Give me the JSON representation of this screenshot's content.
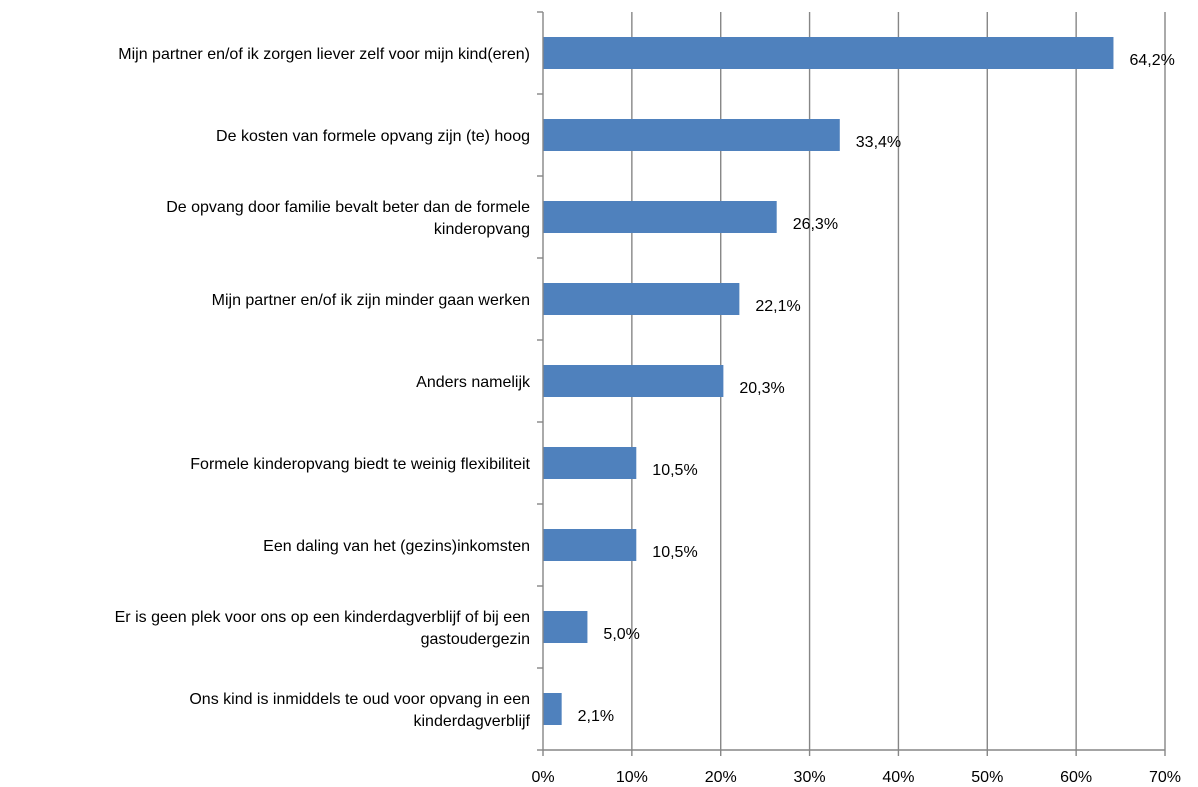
{
  "chart_data": {
    "type": "bar",
    "orientation": "horizontal",
    "categories": [
      "Mijn partner en/of ik zorgen liever zelf voor mijn kind(eren)",
      "De kosten van formele opvang zijn (te) hoog",
      "De opvang door familie bevalt beter dan de formele kinderopvang",
      "Mijn partner en/of ik zijn minder gaan werken",
      "Anders namelijk",
      "Formele kinderopvang biedt te weinig flexibiliteit",
      "Een daling van het (gezins)inkomsten",
      "Er is geen plek voor ons op een kinderdagverblijf of bij een gastoudergezin",
      "Ons kind is inmiddels te oud voor opvang in een kinderdagverblijf"
    ],
    "category_lines": [
      [
        "Mijn partner en/of ik zorgen liever zelf voor mijn kind(eren)"
      ],
      [
        "De kosten van formele opvang zijn (te) hoog"
      ],
      [
        "De opvang door familie bevalt beter dan de formele",
        "kinderopvang"
      ],
      [
        "Mijn partner en/of ik zijn minder gaan werken"
      ],
      [
        "Anders namelijk"
      ],
      [
        "Formele kinderopvang biedt te weinig flexibiliteit"
      ],
      [
        "Een daling van het (gezins)inkomsten"
      ],
      [
        "Er is geen plek voor ons op een kinderdagverblijf of bij een",
        "gastoudergezin"
      ],
      [
        "Ons kind is inmiddels te oud voor opvang in een",
        "kinderdagverblijf"
      ]
    ],
    "values": [
      64.2,
      33.4,
      26.3,
      22.1,
      20.3,
      10.5,
      10.5,
      5.0,
      2.1
    ],
    "data_labels": [
      "64,2%",
      "33,4%",
      "26,3%",
      "22,1%",
      "20,3%",
      "10,5%",
      "10,5%",
      "5,0%",
      "2,1%"
    ],
    "xlim": [
      0,
      70
    ],
    "x_ticks": [
      0,
      10,
      20,
      30,
      40,
      50,
      60,
      70
    ],
    "x_tick_labels": [
      "0%",
      "10%",
      "20%",
      "30%",
      "40%",
      "50%",
      "60%",
      "70%"
    ],
    "grid": "vertical",
    "legend": "none",
    "bar_color": "#4F81BD",
    "grid_color": "#868686",
    "title": "",
    "xlabel": "",
    "ylabel": ""
  }
}
